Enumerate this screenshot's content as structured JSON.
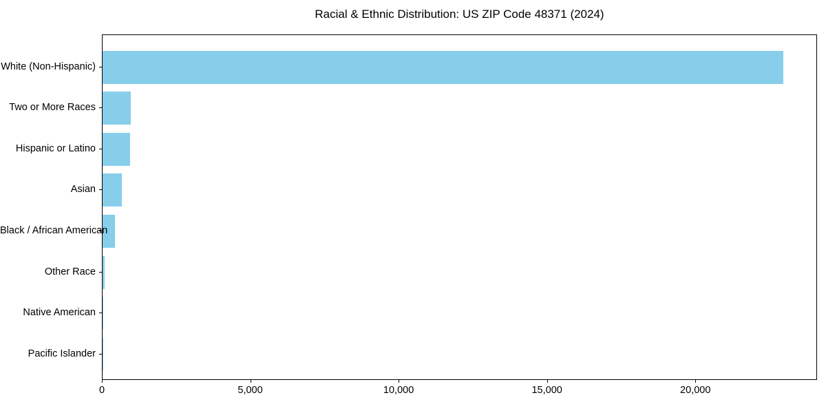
{
  "figure": {
    "title": "Racial & Ethnic Distribution: US ZIP Code 48371 (2024)"
  },
  "colors": {
    "bar": "#87CEEB",
    "axis": "#000000",
    "text": "#000000",
    "background": "#FFFFFF"
  },
  "chart_data": {
    "type": "bar",
    "orientation": "horizontal",
    "title": "Racial & Ethnic Distribution: US ZIP Code 48371 (2024)",
    "categories": [
      "White (Non-Hispanic)",
      "Two or More Races",
      "Hispanic or Latino",
      "Asian",
      "Black / African American",
      "Other Race",
      "Native American",
      "Pacific Islander"
    ],
    "values": [
      22950,
      940,
      920,
      650,
      420,
      65,
      20,
      8
    ],
    "xlabel": "",
    "ylabel": "",
    "xlim": [
      0,
      24100
    ],
    "xticks": [
      {
        "value": 0,
        "label": "0"
      },
      {
        "value": 5000,
        "label": "5,000"
      },
      {
        "value": 10000,
        "label": "10,000"
      },
      {
        "value": 15000,
        "label": "15,000"
      },
      {
        "value": 20000,
        "label": "20,000"
      }
    ],
    "grid": false,
    "legend": null,
    "bar_color": "#87CEEB"
  }
}
